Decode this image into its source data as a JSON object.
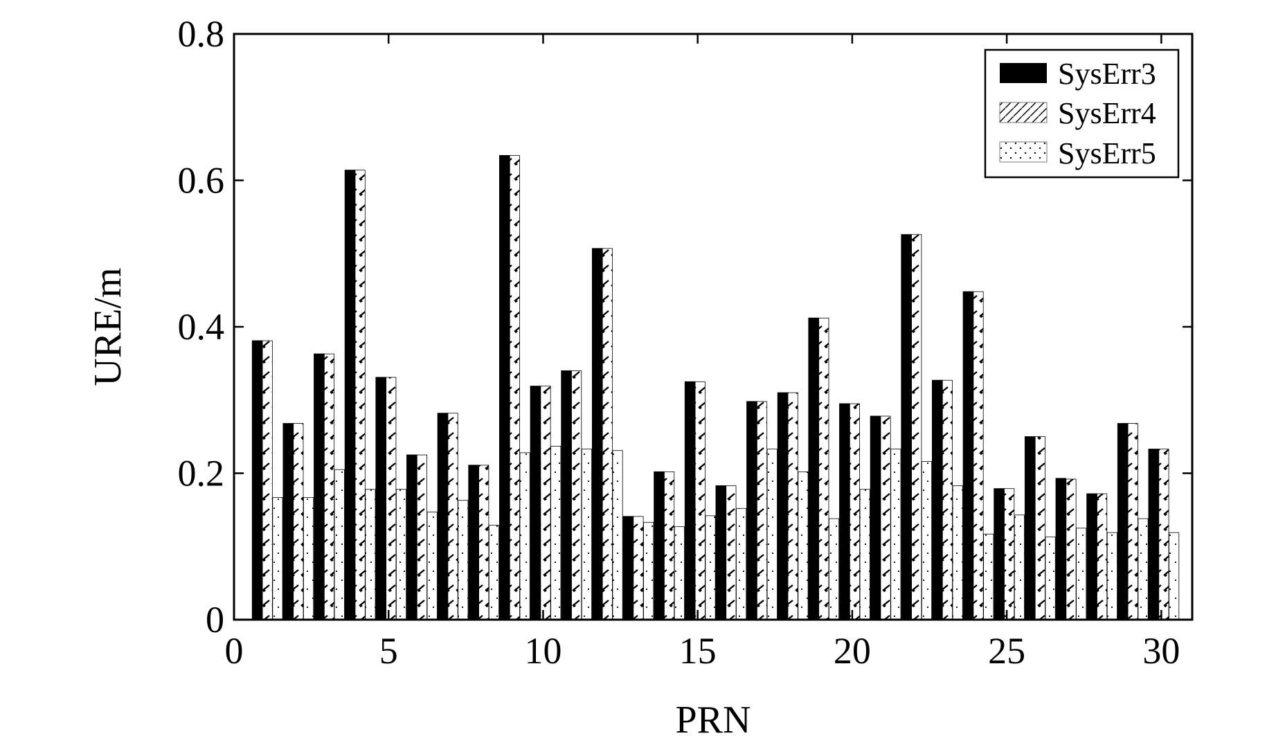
{
  "chart_data": {
    "type": "bar",
    "title": "",
    "xlabel": "PRN",
    "ylabel": "URE/m",
    "xlim": [
      0,
      31
    ],
    "ylim": [
      0,
      0.8
    ],
    "xticks": [
      0,
      5,
      10,
      15,
      20,
      25,
      30
    ],
    "xtick_labels": [
      "0",
      "5",
      "10",
      "15",
      "20",
      "25",
      "30"
    ],
    "yticks": [
      0,
      0.2,
      0.4,
      0.6,
      0.8
    ],
    "ytick_labels": [
      "0",
      "0.2",
      "0.4",
      "0.6",
      "0.8"
    ],
    "grid": false,
    "legend_position": "top-right",
    "categories": [
      1,
      2,
      3,
      4,
      5,
      6,
      7,
      8,
      9,
      10,
      11,
      12,
      13,
      14,
      15,
      16,
      17,
      18,
      19,
      20,
      21,
      22,
      23,
      24,
      25,
      26,
      27,
      28,
      29,
      30
    ],
    "series": [
      {
        "name": "SysErr3",
        "pattern": "solid",
        "color": "#000000",
        "values": [
          0.381,
          0.268,
          0.363,
          0.614,
          0.331,
          0.225,
          0.282,
          0.211,
          0.634,
          0.319,
          0.34,
          0.507,
          0.141,
          0.202,
          0.325,
          0.183,
          0.298,
          0.31,
          0.412,
          0.295,
          0.278,
          0.526,
          0.327,
          0.448,
          0.179,
          0.25,
          0.193,
          0.172,
          0.268,
          0.233
        ]
      },
      {
        "name": "SysErr4",
        "pattern": "hatch",
        "color": "#000000",
        "values": [
          0.381,
          0.268,
          0.363,
          0.614,
          0.331,
          0.225,
          0.282,
          0.211,
          0.634,
          0.319,
          0.34,
          0.507,
          0.141,
          0.202,
          0.325,
          0.183,
          0.298,
          0.31,
          0.412,
          0.295,
          0.278,
          0.526,
          0.327,
          0.448,
          0.179,
          0.25,
          0.192,
          0.172,
          0.268,
          0.233
        ]
      },
      {
        "name": "SysErr5",
        "pattern": "dots",
        "color": "#000000",
        "values": [
          0.167,
          0.167,
          0.205,
          0.178,
          0.178,
          0.147,
          0.163,
          0.129,
          0.228,
          0.237,
          0.233,
          0.231,
          0.133,
          0.127,
          0.142,
          0.152,
          0.233,
          0.202,
          0.138,
          0.178,
          0.233,
          0.216,
          0.183,
          0.117,
          0.143,
          0.113,
          0.125,
          0.119,
          0.138,
          0.119
        ]
      }
    ]
  }
}
